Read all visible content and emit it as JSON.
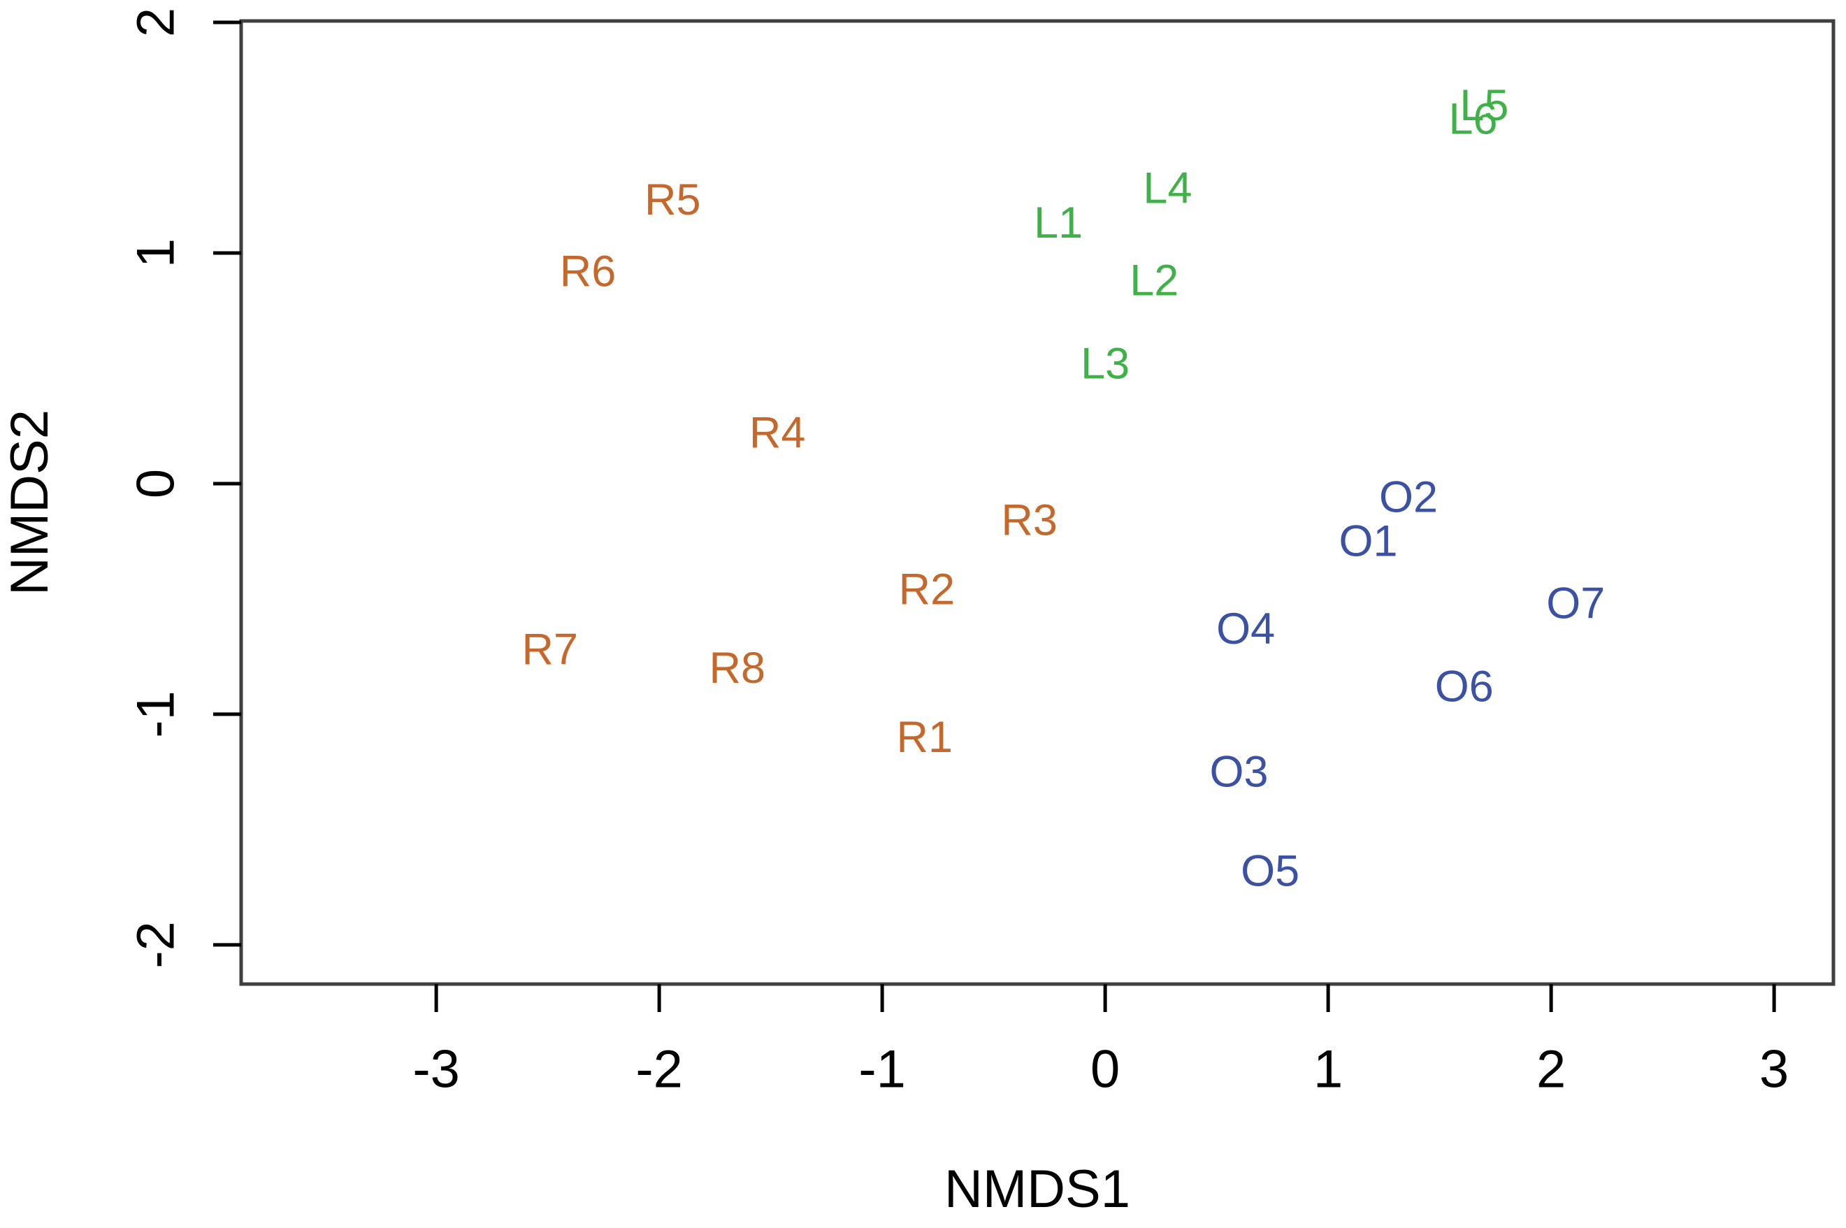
{
  "chart_data": {
    "type": "scatter",
    "title": "",
    "xlabel": "NMDS1",
    "ylabel": "NMDS2",
    "xlim": [
      -3.875,
      3.266
    ],
    "ylim": [
      -2.17,
      2.006
    ],
    "x_ticks": [
      -3,
      -2,
      -1,
      0,
      1,
      2,
      3
    ],
    "y_ticks": [
      -2,
      -1,
      0,
      1,
      2
    ],
    "grid": "off",
    "legend": "none",
    "point_style": "text-labels",
    "axis_color": "#000000",
    "border_color": "#3f3f3f",
    "groups": [
      {
        "name": "R",
        "color": "#c5682b",
        "points": [
          {
            "label": "R1",
            "x": -0.81,
            "y": -1.1
          },
          {
            "label": "R2",
            "x": -0.8,
            "y": -0.46
          },
          {
            "label": "R3",
            "x": -0.34,
            "y": -0.16
          },
          {
            "label": "R4",
            "x": -1.47,
            "y": 0.22
          },
          {
            "label": "R5",
            "x": -1.94,
            "y": 1.23
          },
          {
            "label": "R6",
            "x": -2.32,
            "y": 0.92
          },
          {
            "label": "R7",
            "x": -2.49,
            "y": -0.72
          },
          {
            "label": "R8",
            "x": -1.65,
            "y": -0.8
          }
        ]
      },
      {
        "name": "L",
        "color": "#40b048",
        "points": [
          {
            "label": "L1",
            "x": -0.21,
            "y": 1.13
          },
          {
            "label": "L2",
            "x": 0.22,
            "y": 0.88
          },
          {
            "label": "L3",
            "x": 0.0,
            "y": 0.52
          },
          {
            "label": "L4",
            "x": 0.28,
            "y": 1.28
          },
          {
            "label": "L5",
            "x": 1.7,
            "y": 1.64
          },
          {
            "label": "L6",
            "x": 1.65,
            "y": 1.58
          }
        ]
      },
      {
        "name": "O",
        "color": "#3b51a3",
        "points": [
          {
            "label": "O1",
            "x": 1.18,
            "y": -0.25
          },
          {
            "label": "O2",
            "x": 1.36,
            "y": -0.06
          },
          {
            "label": "O3",
            "x": 0.6,
            "y": -1.25
          },
          {
            "label": "O4",
            "x": 0.63,
            "y": -0.63
          },
          {
            "label": "O5",
            "x": 0.74,
            "y": -1.68
          },
          {
            "label": "O6",
            "x": 1.61,
            "y": -0.88
          },
          {
            "label": "O7",
            "x": 2.11,
            "y": -0.52
          }
        ]
      }
    ]
  }
}
